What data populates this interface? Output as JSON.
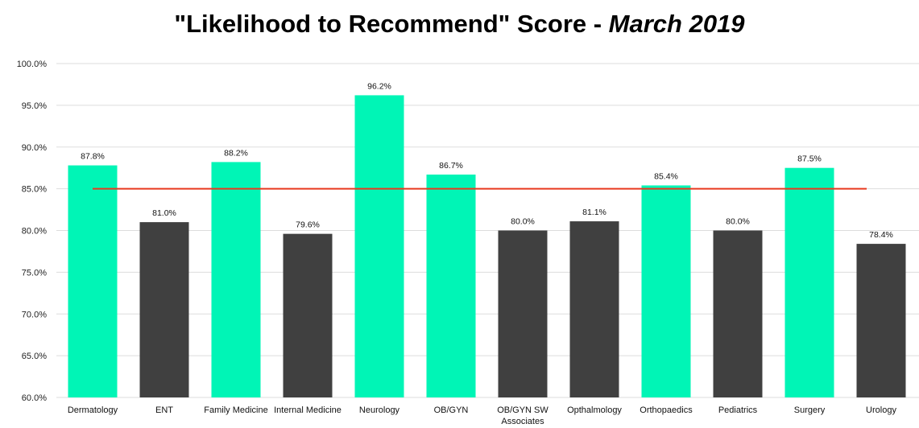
{
  "chart_data": {
    "type": "bar",
    "title_main": "\"Likelihood to Recommend\" Score - ",
    "title_date": "March 2019",
    "categories": [
      "Dermatology",
      "ENT",
      "Family Medicine",
      "Internal Medicine",
      "Neurology",
      "OB/GYN",
      "OB/GYN SW Associates",
      "Opthalmology",
      "Orthopaedics",
      "Pediatrics",
      "Surgery",
      "Urology"
    ],
    "category_lines": [
      [
        "Dermatology"
      ],
      [
        "ENT"
      ],
      [
        "Family Medicine"
      ],
      [
        "Internal Medicine"
      ],
      [
        "Neurology"
      ],
      [
        "OB/GYN"
      ],
      [
        "OB/GYN SW",
        "Associates"
      ],
      [
        "Opthalmology"
      ],
      [
        "Orthopaedics"
      ],
      [
        "Pediatrics"
      ],
      [
        "Surgery"
      ],
      [
        "Urology"
      ]
    ],
    "values": [
      87.8,
      81.0,
      88.2,
      79.6,
      96.2,
      86.7,
      80.0,
      81.1,
      85.4,
      80.0,
      87.5,
      78.4
    ],
    "value_labels": [
      "87.8%",
      "81.0%",
      "88.2%",
      "79.6%",
      "96.2%",
      "86.7%",
      "80.0%",
      "81.1%",
      "85.4%",
      "80.0%",
      "87.5%",
      "78.4%"
    ],
    "target": 85.0,
    "ylim": [
      60,
      100
    ],
    "yticks": [
      60,
      65,
      70,
      75,
      80,
      85,
      90,
      95,
      100
    ],
    "ytick_labels": [
      "60.0%",
      "65.0%",
      "70.0%",
      "75.0%",
      "80.0%",
      "85.0%",
      "90.0%",
      "95.0%",
      "100.0%"
    ],
    "xlabel": "",
    "ylabel": "",
    "grid": true,
    "colors": {
      "above_target": "#00F5B6",
      "below_target": "#404040",
      "target_line": "#E8391F",
      "grid": "#DDDDDD"
    }
  }
}
